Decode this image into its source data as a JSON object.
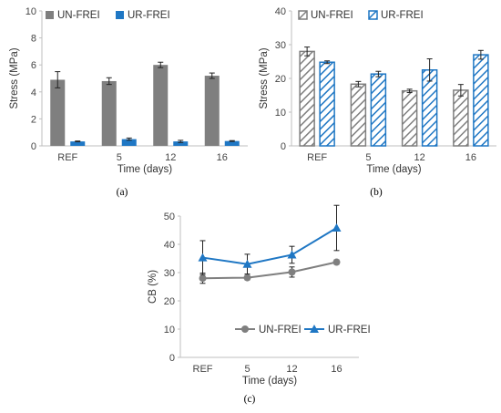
{
  "colors": {
    "un_frei": "#7f7f7f",
    "ur_frei": "#1f77c4",
    "axis": "#bfbfbf",
    "error_bar": "#222222"
  },
  "chart_data": [
    {
      "id": "a",
      "type": "bar",
      "panel_label": "(a)",
      "categories": [
        "REF",
        "5",
        "12",
        "16"
      ],
      "xlabel": "Time (days)",
      "ylabel": "Stress (MPa)",
      "ylim": [
        0,
        10
      ],
      "yticks": [
        0,
        2,
        4,
        6,
        8,
        10
      ],
      "grid": false,
      "legend": "top-left",
      "fill_style": "solid",
      "series": [
        {
          "name": "UN-FREI",
          "values": [
            4.9,
            4.8,
            6.0,
            5.2
          ],
          "errors": [
            0.6,
            0.25,
            0.2,
            0.2
          ],
          "color": "#7f7f7f"
        },
        {
          "name": "UR-FREI",
          "values": [
            0.33,
            0.5,
            0.33,
            0.36
          ],
          "errors": [
            0.03,
            0.08,
            0.08,
            0.03
          ],
          "color": "#1f77c4"
        }
      ]
    },
    {
      "id": "b",
      "type": "bar",
      "panel_label": "(b)",
      "categories": [
        "REF",
        "5",
        "12",
        "16"
      ],
      "xlabel": "Time (days)",
      "ylabel": "Stress (MPa)",
      "ylim": [
        0,
        40
      ],
      "yticks": [
        0,
        10,
        20,
        30,
        40
      ],
      "grid": false,
      "legend": "top-left",
      "fill_style": "hatched",
      "series": [
        {
          "name": "UN-FREI",
          "values": [
            28,
            18.3,
            16.3,
            16.5
          ],
          "errors": [
            1.3,
            0.8,
            0.5,
            1.7
          ],
          "color": "#7f7f7f"
        },
        {
          "name": "UR-FREI",
          "values": [
            24.8,
            21.3,
            22.5,
            27
          ],
          "errors": [
            0.4,
            0.8,
            3.3,
            1.3
          ],
          "color": "#1f77c4"
        }
      ]
    },
    {
      "id": "c",
      "type": "line",
      "panel_label": "(c)",
      "categories": [
        "REF",
        "5",
        "12",
        "16"
      ],
      "xlabel": "Time (days)",
      "ylabel": "CB (%)",
      "ylim": [
        0,
        50
      ],
      "yticks": [
        0,
        10,
        20,
        30,
        40,
        50
      ],
      "grid": false,
      "legend": "bottom-right",
      "series": [
        {
          "name": "UN-FREI",
          "values": [
            28,
            28.2,
            30.2,
            33.7
          ],
          "errors": [
            1.8,
            0.8,
            1.8,
            0.8
          ],
          "color": "#7f7f7f",
          "marker": "circle"
        },
        {
          "name": "UR-FREI",
          "values": [
            35.3,
            33,
            36.3,
            45.8
          ],
          "errors": [
            6,
            3.5,
            3,
            8
          ],
          "color": "#1f77c4",
          "marker": "triangle"
        }
      ]
    }
  ]
}
